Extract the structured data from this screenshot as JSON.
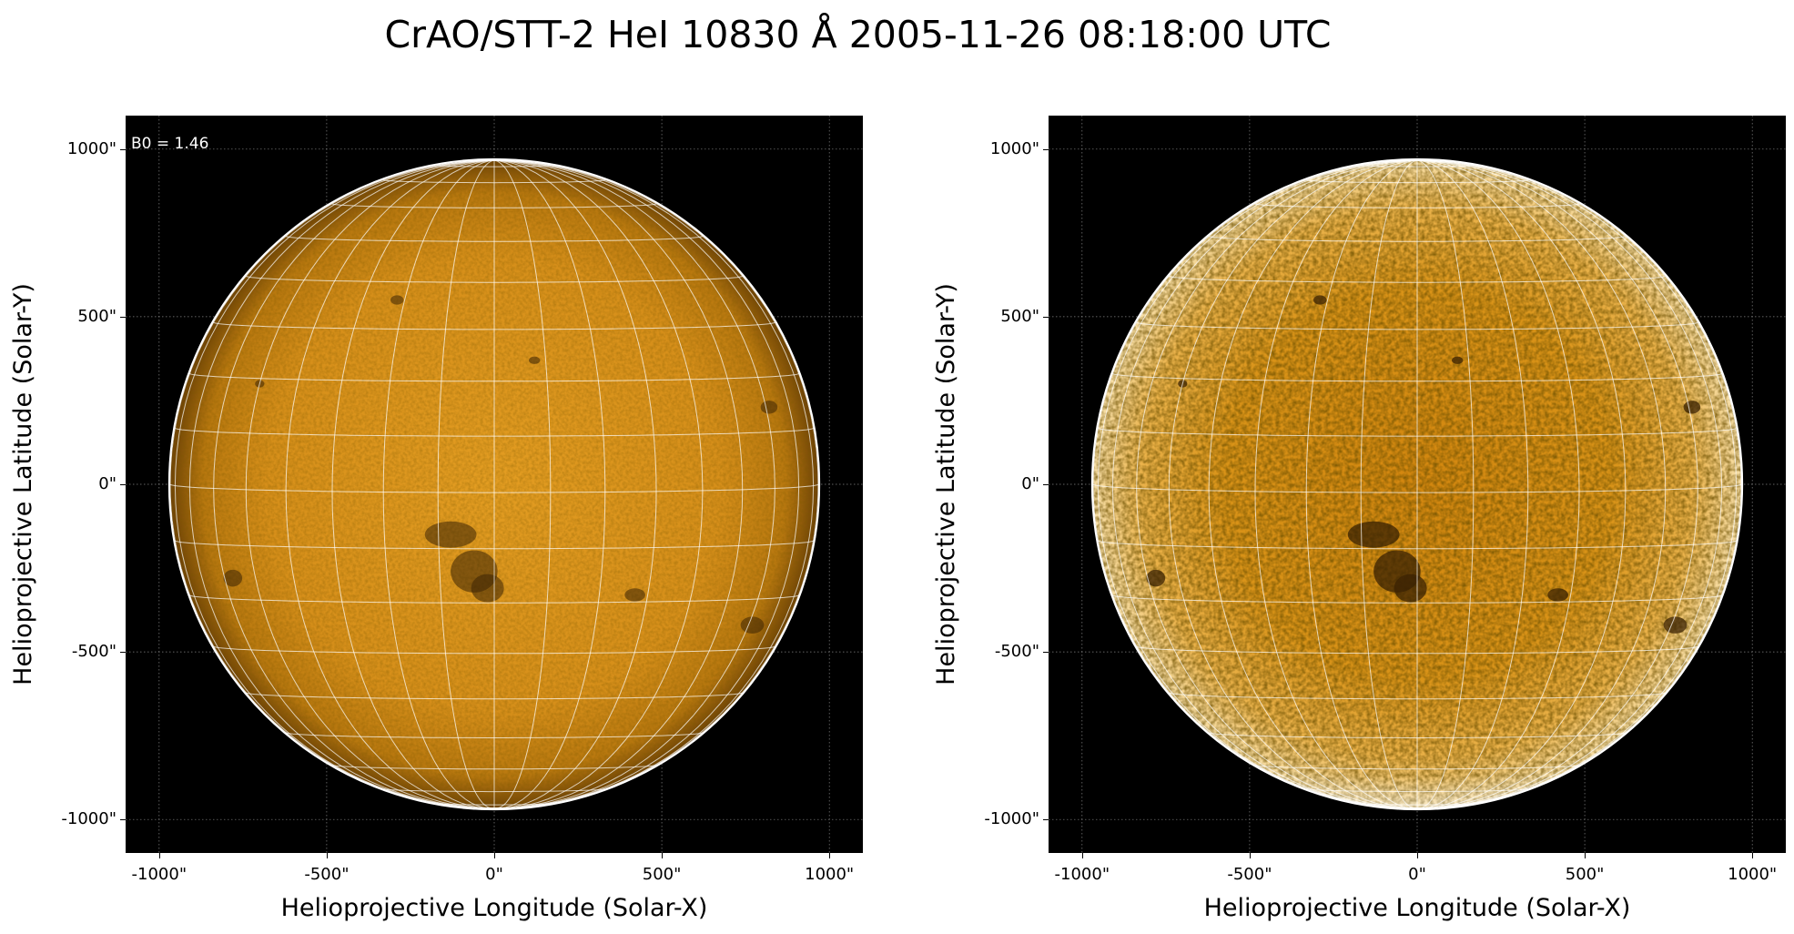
{
  "figure": {
    "title": "CrAO/STT-2 HeI 10830 Å 2005-11-26 08:18:00 UTC"
  },
  "panels": [
    {
      "id": "left",
      "annotation": "B0 = 1.46",
      "xlabel": "Helioprojective Longitude (Solar-X)",
      "ylabel": "Helioprojective Latitude (Solar-Y)",
      "xticks": [
        "-1000\"",
        "-500\"",
        "0\"",
        "500\"",
        "1000\""
      ],
      "yticks": [
        "1000\"",
        "500\"",
        "0\"",
        "-500\"",
        "-1000\""
      ],
      "colormap": "orange (HeI-style)",
      "style": "normal contrast"
    },
    {
      "id": "right",
      "xlabel": "Helioprojective Longitude (Solar-X)",
      "ylabel": "Helioprojective Latitude (Solar-Y)",
      "xticks": [
        "-1000\"",
        "-500\"",
        "0\"",
        "500\"",
        "1000\""
      ],
      "yticks": [
        "1000\"",
        "500\"",
        "0\"",
        "-500\"",
        "-1000\""
      ],
      "colormap": "orange (HeI-style)",
      "style": "enhanced contrast, saturated limb"
    }
  ],
  "colors": {
    "disk_center": "#e8a024",
    "disk_edge": "#7a4a08",
    "background": "#000000",
    "grid": "#ffffff"
  }
}
